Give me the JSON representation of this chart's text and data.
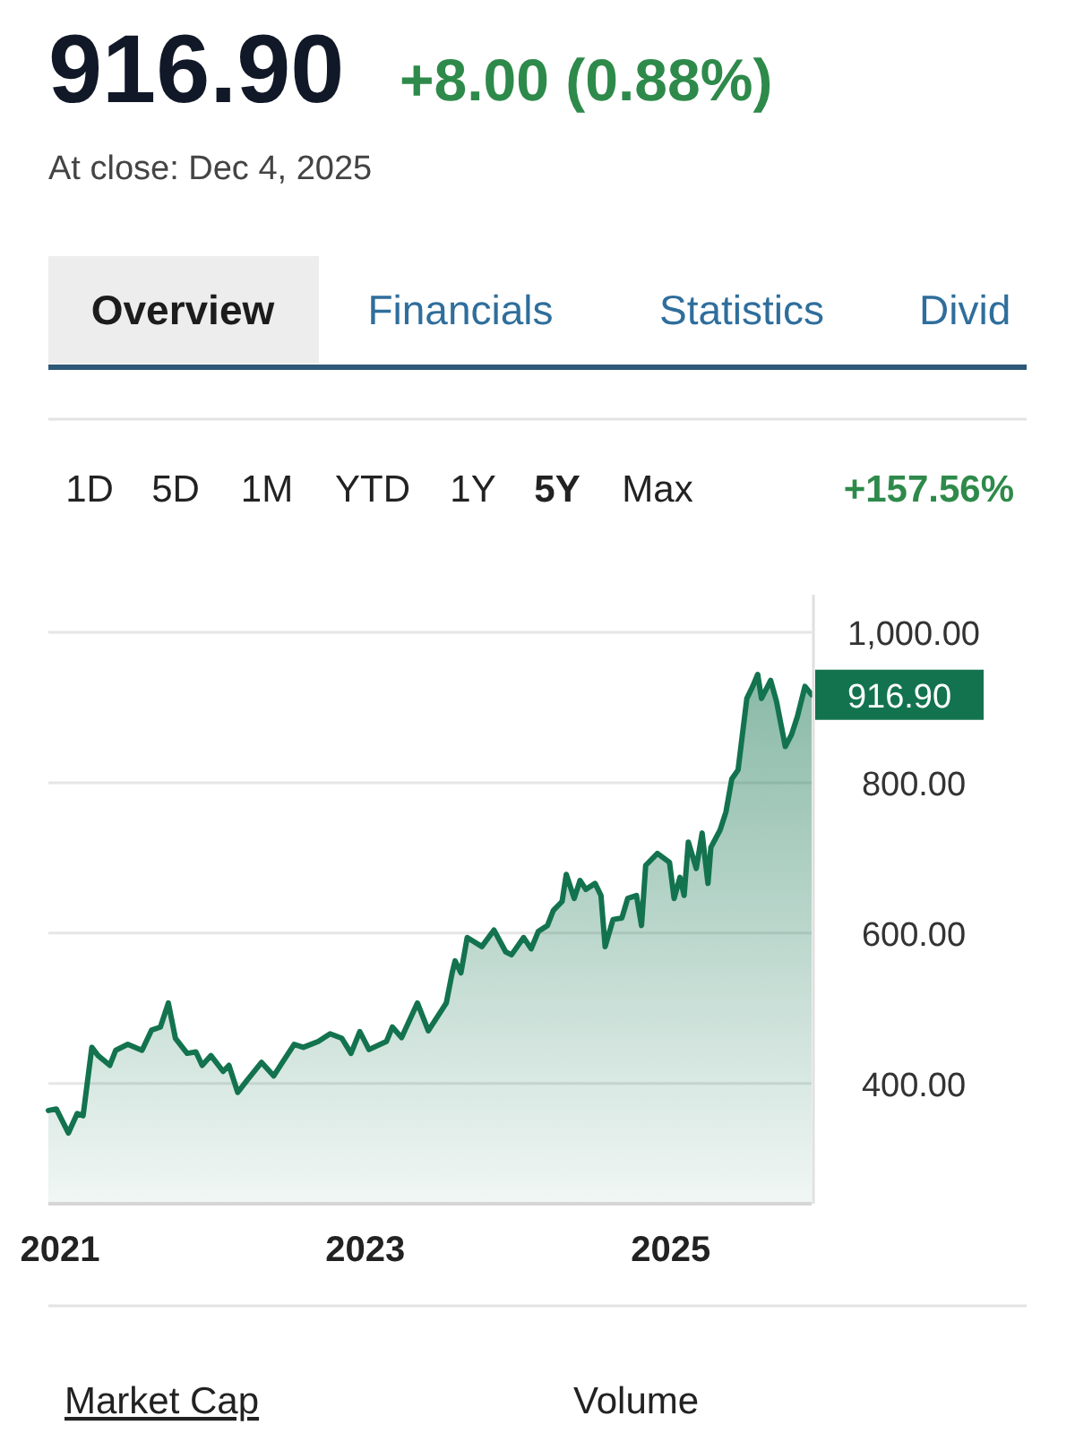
{
  "chart_data": {
    "type": "area",
    "title": "916.90",
    "subtitle": "+8.00 (0.88%)",
    "annotations": [
      "At close: Dec 4, 2025",
      "Overview",
      "Financials",
      "Statistics",
      "Divid",
      "1D",
      "5D",
      "1M",
      "YTD",
      "1Y",
      "5Y",
      "Max",
      "+157.56%",
      "Market Cap",
      "Volume",
      {
        "text": "916.90",
        "x": "2025-12-04",
        "y": 916.9
      }
    ],
    "xlim": [
      "2020-12-04",
      "2025-12-04"
    ],
    "xticks": [
      "2021",
      "2023",
      "2025"
    ],
    "ylim": [
      240,
      1050
    ],
    "yticks": [
      {
        "value": 400,
        "label": "400.00"
      },
      {
        "value": 600,
        "label": "600.00"
      },
      {
        "value": 800,
        "label": "800.00"
      },
      {
        "value": 1000,
        "label": "1,000.00"
      }
    ],
    "grid": "y",
    "tick_labels": "xy",
    "series": [
      {
        "color": "#13734f",
        "x": [
          "2020-12-04",
          "2020-12-23",
          "2021-01-21",
          "2021-02-11",
          "2021-02-25",
          "2021-03-18",
          "2021-04-02",
          "2021-04-30",
          "2021-05-14",
          "2021-06-12",
          "2021-07-16",
          "2021-08-08",
          "2021-08-29",
          "2021-09-17",
          "2021-10-04",
          "2021-11-01",
          "2021-11-22",
          "2021-12-07",
          "2021-12-28",
          "2022-01-26",
          "2022-02-09",
          "2022-03-02",
          "2022-03-24",
          "2022-04-28",
          "2022-05-27",
          "2022-06-17",
          "2022-07-15",
          "2022-08-06",
          "2022-09-11",
          "2022-10-09",
          "2022-11-06",
          "2022-11-28",
          "2022-12-19",
          "2023-01-10",
          "2023-02-21",
          "2023-03-07",
          "2023-03-29",
          "2023-05-06",
          "2023-06-01",
          "2023-07-14",
          "2023-07-28",
          "2023-08-04",
          "2023-08-18",
          "2023-09-02",
          "2023-10-07",
          "2023-11-05",
          "2023-12-03",
          "2023-12-17",
          "2024-01-15",
          "2024-02-02",
          "2024-02-19",
          "2024-03-12",
          "2024-03-26",
          "2024-04-16",
          "2024-04-26",
          "2024-05-15",
          "2024-05-29",
          "2024-06-12",
          "2024-07-04",
          "2024-07-18",
          "2024-07-28",
          "2024-08-16",
          "2024-09-06",
          "2024-09-20",
          "2024-10-11",
          "2024-10-23",
          "2024-11-02",
          "2024-11-30",
          "2024-12-29",
          "2025-01-09",
          "2025-01-23",
          "2025-02-02",
          "2025-02-12",
          "2025-03-03",
          "2025-03-17",
          "2025-03-31",
          "2025-04-07",
          "2025-04-29",
          "2025-05-13",
          "2025-05-27",
          "2025-06-11",
          "2025-07-02",
          "2025-07-16",
          "2025-07-28",
          "2025-08-06",
          "2025-08-28",
          "2025-09-11",
          "2025-10-02",
          "2025-10-17",
          "2025-10-31",
          "2025-11-18",
          "2025-12-04"
        ],
        "values": [
          364,
          366,
          334,
          360,
          357,
          448,
          437,
          424,
          444,
          452,
          444,
          471,
          475,
          507,
          460,
          440,
          442,
          424,
          437,
          416,
          424,
          388,
          404,
          428,
          410,
          428,
          452,
          448,
          456,
          466,
          460,
          440,
          469,
          445,
          456,
          475,
          461,
          507,
          470,
          507,
          547,
          563,
          547,
          594,
          582,
          604,
          575,
          571,
          594,
          579,
          602,
          610,
          630,
          642,
          678,
          646,
          670,
          658,
          666,
          650,
          582,
          618,
          620,
          646,
          650,
          610,
          690,
          706,
          694,
          646,
          674,
          650,
          721,
          686,
          733,
          666,
          714,
          737,
          761,
          805,
          817,
          912,
          928,
          944,
          912,
          936,
          908,
          848,
          864,
          888,
          928,
          916.9
        ]
      }
    ]
  }
}
